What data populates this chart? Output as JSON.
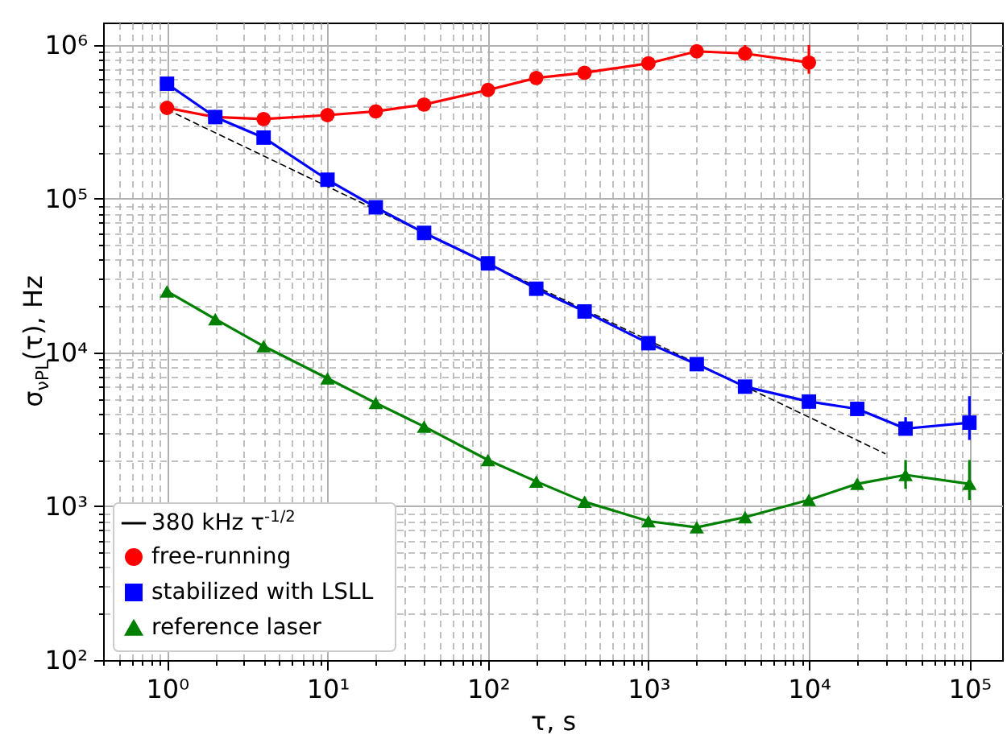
{
  "chart_data": {
    "type": "line",
    "xlabel": "τ, s",
    "ylabel": "σ$_{νPL}$(τ), Hz",
    "log": "xy",
    "grid": true,
    "legend": "bottom left",
    "xlim": [
      0.4,
      160000
    ],
    "ylim": [
      100,
      1400000
    ],
    "xticks": [
      {
        "value": 0.4,
        "label": null
      },
      {
        "value": 0.5,
        "label": null
      },
      {
        "value": 0.6,
        "label": null
      },
      {
        "value": 0.7,
        "label": null
      },
      {
        "value": 0.8,
        "label": null
      },
      {
        "value": 0.9,
        "label": null
      },
      {
        "value": 1,
        "label": "10⁰"
      },
      {
        "value": 2,
        "label": null
      },
      {
        "value": 3,
        "label": null
      },
      {
        "value": 4,
        "label": null
      },
      {
        "value": 5,
        "label": null
      },
      {
        "value": 6,
        "label": null
      },
      {
        "value": 7,
        "label": null
      },
      {
        "value": 8,
        "label": null
      },
      {
        "value": 9,
        "label": null
      },
      {
        "value": 10,
        "label": "10¹"
      },
      {
        "value": 20,
        "label": null
      },
      {
        "value": 30,
        "label": null
      },
      {
        "value": 40,
        "label": null
      },
      {
        "value": 50,
        "label": null
      },
      {
        "value": 60,
        "label": null
      },
      {
        "value": 70,
        "label": null
      },
      {
        "value": 80,
        "label": null
      },
      {
        "value": 90,
        "label": null
      },
      {
        "value": 100,
        "label": "10²"
      },
      {
        "value": 200,
        "label": null
      },
      {
        "value": 300,
        "label": null
      },
      {
        "value": 400,
        "label": null
      },
      {
        "value": 500,
        "label": null
      },
      {
        "value": 600,
        "label": null
      },
      {
        "value": 700,
        "label": null
      },
      {
        "value": 800,
        "label": null
      },
      {
        "value": 900,
        "label": null
      },
      {
        "value": 1000,
        "label": "10³"
      },
      {
        "value": 2000,
        "label": null
      },
      {
        "value": 3000,
        "label": null
      },
      {
        "value": 4000,
        "label": null
      },
      {
        "value": 5000,
        "label": null
      },
      {
        "value": 6000,
        "label": null
      },
      {
        "value": 7000,
        "label": null
      },
      {
        "value": 8000,
        "label": null
      },
      {
        "value": 9000,
        "label": null
      },
      {
        "value": 10000,
        "label": "10⁴"
      },
      {
        "value": 20000,
        "label": null
      },
      {
        "value": 30000,
        "label": null
      },
      {
        "value": 40000,
        "label": null
      },
      {
        "value": 50000,
        "label": null
      },
      {
        "value": 60000,
        "label": null
      },
      {
        "value": 70000,
        "label": null
      },
      {
        "value": 80000,
        "label": null
      },
      {
        "value": 90000,
        "label": null
      },
      {
        "value": 100000,
        "label": "10⁵"
      }
    ],
    "yticks": [
      {
        "value": 100,
        "label": "10²"
      },
      {
        "value": 200,
        "label": null
      },
      {
        "value": 300,
        "label": null
      },
      {
        "value": 400,
        "label": null
      },
      {
        "value": 500,
        "label": null
      },
      {
        "value": 600,
        "label": null
      },
      {
        "value": 700,
        "label": null
      },
      {
        "value": 800,
        "label": null
      },
      {
        "value": 900,
        "label": null
      },
      {
        "value": 1000,
        "label": "10³"
      },
      {
        "value": 2000,
        "label": null
      },
      {
        "value": 3000,
        "label": null
      },
      {
        "value": 4000,
        "label": null
      },
      {
        "value": 5000,
        "label": null
      },
      {
        "value": 6000,
        "label": null
      },
      {
        "value": 7000,
        "label": null
      },
      {
        "value": 8000,
        "label": null
      },
      {
        "value": 9000,
        "label": null
      },
      {
        "value": 10000,
        "label": "10⁴"
      },
      {
        "value": 20000,
        "label": null
      },
      {
        "value": 30000,
        "label": null
      },
      {
        "value": 40000,
        "label": null
      },
      {
        "value": 50000,
        "label": null
      },
      {
        "value": 60000,
        "label": null
      },
      {
        "value": 70000,
        "label": null
      },
      {
        "value": 80000,
        "label": null
      },
      {
        "value": 90000,
        "label": null
      },
      {
        "value": 100000,
        "label": "10⁵"
      },
      {
        "value": 200000,
        "label": null
      },
      {
        "value": 300000,
        "label": null
      },
      {
        "value": 400000,
        "label": null
      },
      {
        "value": 500000,
        "label": null
      },
      {
        "value": 600000,
        "label": null
      },
      {
        "value": 700000,
        "label": null
      },
      {
        "value": 800000,
        "label": null
      },
      {
        "value": 900000,
        "label": null
      },
      {
        "value": 1000000,
        "label": "10⁶"
      }
    ],
    "series": [
      {
        "name": "380 kHz τ$^{-1/2}$",
        "type": "line",
        "color": "#000000",
        "line_style": "dashed",
        "marker": "none",
        "x": [
          1,
          30000
        ],
        "values": [
          380000,
          2194
        ]
      },
      {
        "name": "free-running",
        "color": "#ff0000",
        "marker": "circle",
        "x": [
          1,
          2,
          4,
          10,
          20,
          40,
          100,
          200,
          400,
          1000,
          2000,
          4000,
          10000
        ],
        "values": [
          390000,
          340000,
          330000,
          350000,
          370000,
          410000,
          510000,
          610000,
          660000,
          760000,
          910000,
          880000,
          770000
        ],
        "errors": [
          null,
          null,
          null,
          null,
          null,
          null,
          null,
          null,
          null,
          null,
          null,
          [
            800000,
            1000000
          ],
          [
            650000,
            1000000
          ]
        ]
      },
      {
        "name": "stabilized with LSLL",
        "color": "#0000ff",
        "marker": "square",
        "x": [
          1,
          2,
          4,
          10,
          20,
          40,
          100,
          200,
          400,
          1000,
          2000,
          4000,
          10000,
          20000,
          40000,
          100000
        ],
        "values": [
          560000,
          340000,
          250000,
          133000,
          88000,
          60000,
          38000,
          26000,
          18500,
          11500,
          8400,
          6000,
          4800,
          4300,
          3200,
          3500
        ],
        "errors": [
          null,
          null,
          null,
          null,
          null,
          null,
          null,
          null,
          null,
          null,
          null,
          null,
          null,
          null,
          [
            2900,
            3800
          ],
          [
            2700,
            5200
          ]
        ]
      },
      {
        "name": "reference laser",
        "color": "#008000",
        "marker": "triangle",
        "x": [
          1,
          2,
          4,
          10,
          20,
          40,
          100,
          200,
          400,
          1000,
          2000,
          4000,
          10000,
          20000,
          40000,
          100000
        ],
        "values": [
          25000,
          16500,
          11000,
          6800,
          4700,
          3300,
          2000,
          1450,
          1070,
          800,
          730,
          850,
          1100,
          1400,
          1600,
          1400
        ],
        "errors": [
          null,
          null,
          null,
          null,
          null,
          null,
          null,
          null,
          null,
          null,
          null,
          null,
          null,
          null,
          [
            1300,
            2000
          ],
          [
            1100,
            2000
          ]
        ]
      }
    ]
  }
}
